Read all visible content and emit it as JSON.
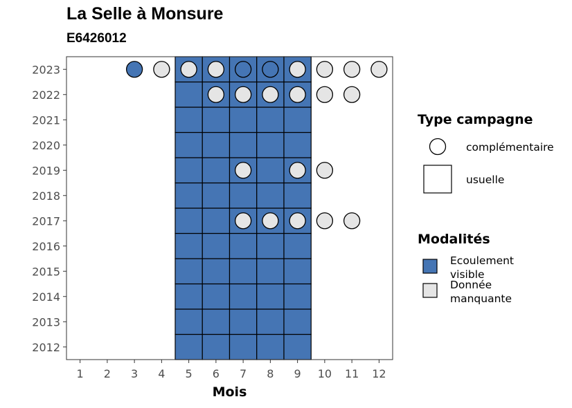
{
  "chart_data": {
    "type": "heatmap",
    "title": "La Selle à Monsure",
    "subtitle": "E6426012",
    "xlabel": "Mois",
    "ylabel": "",
    "x_ticks": [
      1,
      2,
      3,
      4,
      5,
      6,
      7,
      8,
      9,
      10,
      11,
      12
    ],
    "y_ticks": [
      2012,
      2013,
      2014,
      2015,
      2016,
      2017,
      2018,
      2019,
      2020,
      2021,
      2022,
      2023
    ],
    "xlim": [
      0.5,
      12.5
    ],
    "ylim": [
      2011.5,
      2023.5
    ],
    "colors": {
      "ecoulement_visible": "#4575b4",
      "donnee_manquante": "#e5e5e5"
    },
    "legend_type": {
      "title": "Type campagne",
      "items": [
        {
          "label": "complémentaire",
          "shape": "circle"
        },
        {
          "label": "usuelle",
          "shape": "square"
        }
      ]
    },
    "legend_modalites": {
      "title": "Modalités",
      "items": [
        {
          "label": [
            "Ecoulement",
            "visible"
          ],
          "color": "#4575b4"
        },
        {
          "label": [
            "Donnée",
            "manquante"
          ],
          "color": "#e5e5e5"
        }
      ]
    },
    "usuelle": {
      "years": [
        2012,
        2013,
        2014,
        2015,
        2016,
        2017,
        2018,
        2019,
        2020,
        2021,
        2022,
        2023
      ],
      "months": [
        5,
        6,
        7,
        8,
        9
      ],
      "modalite": "Ecoulement visible"
    },
    "complementaire": [
      {
        "year": 2023,
        "month": 3,
        "modalite": "Ecoulement visible"
      },
      {
        "year": 2023,
        "month": 4,
        "modalite": "Donnée manquante"
      },
      {
        "year": 2023,
        "month": 5,
        "modalite": "Donnée manquante"
      },
      {
        "year": 2023,
        "month": 6,
        "modalite": "Donnée manquante"
      },
      {
        "year": 2023,
        "month": 7,
        "modalite": "Ecoulement visible"
      },
      {
        "year": 2023,
        "month": 8,
        "modalite": "Ecoulement visible"
      },
      {
        "year": 2023,
        "month": 9,
        "modalite": "Donnée manquante"
      },
      {
        "year": 2023,
        "month": 10,
        "modalite": "Donnée manquante"
      },
      {
        "year": 2023,
        "month": 11,
        "modalite": "Donnée manquante"
      },
      {
        "year": 2023,
        "month": 12,
        "modalite": "Donnée manquante"
      },
      {
        "year": 2022,
        "month": 6,
        "modalite": "Donnée manquante"
      },
      {
        "year": 2022,
        "month": 7,
        "modalite": "Donnée manquante"
      },
      {
        "year": 2022,
        "month": 8,
        "modalite": "Donnée manquante"
      },
      {
        "year": 2022,
        "month": 9,
        "modalite": "Donnée manquante"
      },
      {
        "year": 2022,
        "month": 10,
        "modalite": "Donnée manquante"
      },
      {
        "year": 2022,
        "month": 11,
        "modalite": "Donnée manquante"
      },
      {
        "year": 2019,
        "month": 7,
        "modalite": "Donnée manquante"
      },
      {
        "year": 2019,
        "month": 9,
        "modalite": "Donnée manquante"
      },
      {
        "year": 2019,
        "month": 10,
        "modalite": "Donnée manquante"
      },
      {
        "year": 2017,
        "month": 7,
        "modalite": "Donnée manquante"
      },
      {
        "year": 2017,
        "month": 8,
        "modalite": "Donnée manquante"
      },
      {
        "year": 2017,
        "month": 9,
        "modalite": "Donnée manquante"
      },
      {
        "year": 2017,
        "month": 10,
        "modalite": "Donnée manquante"
      },
      {
        "year": 2017,
        "month": 11,
        "modalite": "Donnée manquante"
      }
    ]
  }
}
